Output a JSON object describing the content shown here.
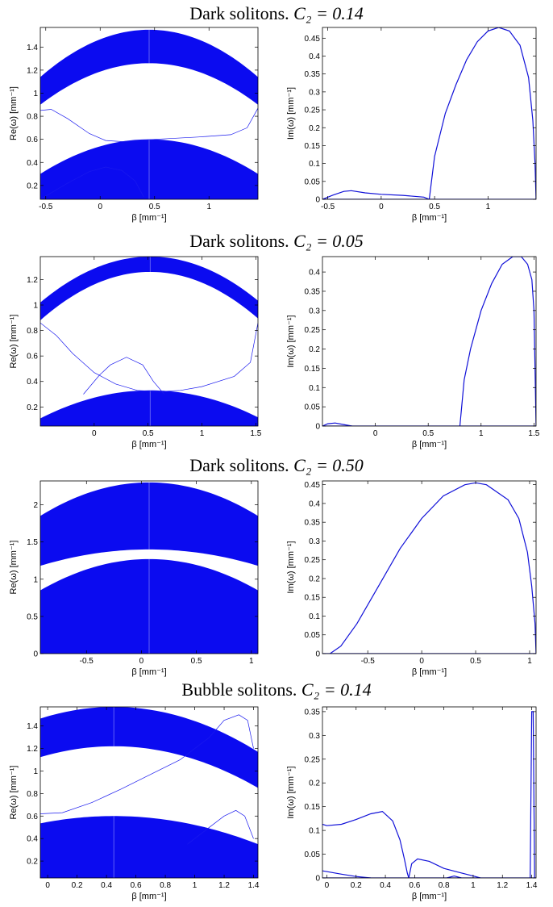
{
  "figure": {
    "rows": [
      {
        "title_prefix": "Dark solitons.",
        "param": "C₂ = 0.14"
      },
      {
        "title_prefix": "Dark solitons.",
        "param": "C₂ = 0.05"
      },
      {
        "title_prefix": "Dark solitons.",
        "param": "C₂ = 0.50"
      },
      {
        "title_prefix": "Bubble solitons.",
        "param": "C₂ = 0.14"
      }
    ]
  },
  "chart_data": [
    {
      "type": "line",
      "row": 0,
      "panel": "left",
      "xlabel": "β [mm⁻¹]",
      "ylabel": "Re(ω) [mm⁻¹]",
      "xlim": [
        -0.55,
        1.45
      ],
      "ylim": [
        0.08,
        1.57
      ],
      "xticks": [
        -0.5,
        0,
        0.5,
        1
      ],
      "yticks": [
        0.2,
        0.4,
        0.6,
        0.8,
        1,
        1.2,
        1.4
      ],
      "xtick_labels": [
        "-0.5",
        "0",
        "0.5",
        "1"
      ],
      "ytick_labels": [
        "0.2",
        "0.4",
        "0.6",
        "0.8",
        "1",
        "1.2",
        "1.4"
      ],
      "continuum_bands": [
        {
          "center": 0.45,
          "lower_peak": 1.26,
          "upper_peak": 1.55,
          "lower_edge": 0.9,
          "upper_edge": 1.14
        },
        {
          "center": 0.45,
          "lower_peak": 0.08,
          "upper_peak": 0.6,
          "lower_edge": 0.08,
          "upper_edge": 0.3
        }
      ],
      "series": [
        {
          "x": [
            -0.55,
            -0.45,
            -0.3,
            -0.1,
            0.05,
            0.2,
            0.5,
            0.9,
            1.2,
            1.35,
            1.45
          ],
          "y": [
            0.85,
            0.86,
            0.78,
            0.65,
            0.59,
            0.58,
            0.6,
            0.62,
            0.64,
            0.7,
            0.87
          ]
        },
        {
          "x": [
            -0.55,
            -0.3,
            -0.1,
            0.05,
            0.2,
            0.32,
            0.4
          ],
          "y": [
            0.08,
            0.22,
            0.32,
            0.36,
            0.33,
            0.24,
            0.1
          ]
        }
      ]
    },
    {
      "type": "line",
      "row": 0,
      "panel": "right",
      "xlabel": "β [mm⁻¹]",
      "ylabel": "Im(ω) [mm⁻¹]",
      "xlim": [
        -0.55,
        1.45
      ],
      "ylim": [
        0,
        0.48
      ],
      "xticks": [
        -0.5,
        0,
        0.5,
        1
      ],
      "yticks": [
        0,
        0.05,
        0.1,
        0.15,
        0.2,
        0.25,
        0.3,
        0.35,
        0.4,
        0.45
      ],
      "xtick_labels": [
        "-0.5",
        "0",
        "0.5",
        "1"
      ],
      "ytick_labels": [
        "0",
        "0.05",
        "0.1",
        "0.15",
        "0.2",
        "0.25",
        "0.3",
        "0.35",
        "0.4",
        "0.45"
      ],
      "series": [
        {
          "x": [
            -0.55,
            -0.45,
            -0.35,
            -0.28,
            -0.15,
            0.0,
            0.2,
            0.4,
            0.45
          ],
          "y": [
            0,
            0.012,
            0.022,
            0.024,
            0.018,
            0.014,
            0.011,
            0.006,
            0
          ]
        },
        {
          "x": [
            0.45,
            0.5,
            0.6,
            0.7,
            0.8,
            0.9,
            1.0,
            1.1,
            1.2,
            1.3,
            1.38,
            1.42,
            1.44,
            1.45
          ],
          "y": [
            0,
            0.12,
            0.24,
            0.32,
            0.39,
            0.44,
            0.47,
            0.48,
            0.47,
            0.43,
            0.34,
            0.22,
            0.1,
            0
          ]
        },
        {
          "x": [
            -0.55,
            1.45
          ],
          "y": [
            0,
            0
          ]
        }
      ]
    },
    {
      "type": "line",
      "row": 1,
      "panel": "left",
      "xlabel": "β [mm⁻¹]",
      "ylabel": "Re(ω) [mm⁻¹]",
      "xlim": [
        -0.5,
        1.52
      ],
      "ylim": [
        0.05,
        1.38
      ],
      "xticks": [
        0,
        0.5,
        1,
        1.5
      ],
      "yticks": [
        0.2,
        0.4,
        0.6,
        0.8,
        1,
        1.2
      ],
      "xtick_labels": [
        "0",
        "0.5",
        "1",
        "1.5"
      ],
      "ytick_labels": [
        "0.2",
        "0.4",
        "0.6",
        "0.8",
        "1",
        "1.2"
      ],
      "continuum_bands": [
        {
          "center": 0.52,
          "lower_peak": 1.26,
          "upper_peak": 1.38,
          "lower_edge": 0.88,
          "upper_edge": 1.02
        },
        {
          "center": 0.52,
          "lower_peak": 0.05,
          "upper_peak": 0.33,
          "lower_edge": 0.05,
          "upper_edge": 0.11
        }
      ],
      "series": [
        {
          "x": [
            -0.5,
            -0.35,
            -0.2,
            0.0,
            0.2,
            0.4,
            0.6,
            0.8,
            1.0,
            1.3,
            1.45,
            1.52
          ],
          "y": [
            0.86,
            0.76,
            0.62,
            0.47,
            0.38,
            0.33,
            0.32,
            0.33,
            0.36,
            0.44,
            0.55,
            0.86
          ]
        },
        {
          "x": [
            -0.1,
            0.05,
            0.15,
            0.3,
            0.45,
            0.55,
            0.65
          ],
          "y": [
            0.3,
            0.45,
            0.53,
            0.59,
            0.53,
            0.4,
            0.3
          ]
        }
      ]
    },
    {
      "type": "line",
      "row": 1,
      "panel": "right",
      "xlabel": "β [mm⁻¹]",
      "ylabel": "Im(ω) [mm⁻¹]",
      "xlim": [
        -0.5,
        1.52
      ],
      "ylim": [
        0,
        0.44
      ],
      "xticks": [
        0,
        0.5,
        1,
        1.5
      ],
      "yticks": [
        0,
        0.05,
        0.1,
        0.15,
        0.2,
        0.25,
        0.3,
        0.35,
        0.4
      ],
      "xtick_labels": [
        "0",
        "0.5",
        "1",
        "1.5"
      ],
      "ytick_labels": [
        "0",
        "0.05",
        "0.1",
        "0.15",
        "0.2",
        "0.25",
        "0.3",
        "0.35",
        "0.4"
      ],
      "series": [
        {
          "x": [
            -0.5,
            -0.45,
            -0.38,
            -0.3,
            -0.22
          ],
          "y": [
            0,
            0.006,
            0.008,
            0.004,
            0
          ]
        },
        {
          "x": [
            0.8,
            0.84,
            0.9,
            1.0,
            1.1,
            1.2,
            1.3,
            1.38,
            1.44,
            1.48,
            1.5,
            1.51,
            1.52
          ],
          "y": [
            0,
            0.12,
            0.2,
            0.3,
            0.37,
            0.42,
            0.44,
            0.44,
            0.42,
            0.38,
            0.3,
            0.15,
            0
          ]
        },
        {
          "x": [
            -0.5,
            1.52
          ],
          "y": [
            0,
            0
          ]
        }
      ]
    },
    {
      "type": "line",
      "row": 2,
      "panel": "left",
      "xlabel": "β [mm⁻¹]",
      "ylabel": "Re(ω) [mm⁻¹]",
      "xlim": [
        -0.92,
        1.06
      ],
      "ylim": [
        0,
        2.32
      ],
      "xticks": [
        -0.5,
        0,
        0.5,
        1
      ],
      "yticks": [
        0,
        0.5,
        1,
        1.5,
        2
      ],
      "xtick_labels": [
        "-0.5",
        "0",
        "0.5",
        "1"
      ],
      "ytick_labels": [
        "0",
        "0.5",
        "1",
        "1.5",
        "2"
      ],
      "continuum_bands": [
        {
          "center": 0.07,
          "lower_peak": 1.4,
          "upper_peak": 2.3,
          "lower_edge": 1.18,
          "upper_edge": 1.85
        },
        {
          "center": 0.07,
          "lower_peak": 0.0,
          "upper_peak": 1.27,
          "lower_edge": 0.0,
          "upper_edge": 0.85
        }
      ],
      "series": []
    },
    {
      "type": "line",
      "row": 2,
      "panel": "right",
      "xlabel": "β [mm⁻¹]",
      "ylabel": "Im(ω) [mm⁻¹]",
      "xlim": [
        -0.92,
        1.06
      ],
      "ylim": [
        0,
        0.46
      ],
      "xticks": [
        -0.5,
        0,
        0.5,
        1
      ],
      "yticks": [
        0,
        0.05,
        0.1,
        0.15,
        0.2,
        0.25,
        0.3,
        0.35,
        0.4,
        0.45
      ],
      "xtick_labels": [
        "-0.5",
        "0",
        "0.5",
        "1"
      ],
      "ytick_labels": [
        "0",
        "0.05",
        "0.1",
        "0.15",
        "0.2",
        "0.25",
        "0.3",
        "0.35",
        "0.4",
        "0.45"
      ],
      "series": [
        {
          "x": [
            -0.85,
            -0.75,
            -0.6,
            -0.4,
            -0.2,
            0.0,
            0.2,
            0.4,
            0.5,
            0.6,
            0.8,
            0.9,
            0.98,
            1.02,
            1.05,
            1.06
          ],
          "y": [
            0,
            0.02,
            0.08,
            0.18,
            0.28,
            0.36,
            0.42,
            0.45,
            0.455,
            0.45,
            0.41,
            0.36,
            0.27,
            0.18,
            0.08,
            0
          ]
        },
        {
          "x": [
            -0.92,
            1.06
          ],
          "y": [
            0,
            0
          ]
        }
      ]
    },
    {
      "type": "line",
      "row": 3,
      "panel": "left",
      "xlabel": "β [mm⁻¹]",
      "ylabel": "Re(ω) [mm⁻¹]",
      "xlim": [
        -0.05,
        1.43
      ],
      "ylim": [
        0.05,
        1.57
      ],
      "xticks": [
        0,
        0.2,
        0.4,
        0.6,
        0.8,
        1,
        1.2,
        1.4
      ],
      "yticks": [
        0.2,
        0.4,
        0.6,
        0.8,
        1,
        1.2,
        1.4
      ],
      "xtick_labels": [
        "0",
        "0.2",
        "0.4",
        "0.6",
        "0.8",
        "1",
        "1.2",
        "1.4"
      ],
      "ytick_labels": [
        "0.2",
        "0.4",
        "0.6",
        "0.8",
        "1",
        "1.2",
        "1.4"
      ],
      "continuum_bands": [
        {
          "center": 0.45,
          "lower_peak": 1.22,
          "upper_peak": 1.57,
          "lower_edge": 0.85,
          "upper_edge": 1.17
        },
        {
          "center": 0.45,
          "lower_peak": 0.05,
          "upper_peak": 0.6,
          "lower_edge": 0.05,
          "upper_edge": 0.35
        }
      ],
      "series": [
        {
          "x": [
            -0.05,
            0.1,
            0.3,
            0.5,
            0.7,
            0.9,
            1.1,
            1.2,
            1.3,
            1.36,
            1.4
          ],
          "y": [
            0.62,
            0.63,
            0.72,
            0.84,
            0.97,
            1.1,
            1.3,
            1.45,
            1.5,
            1.45,
            1.2
          ]
        },
        {
          "x": [
            0.95,
            1.1,
            1.2,
            1.28,
            1.34,
            1.4
          ],
          "y": [
            0.35,
            0.5,
            0.6,
            0.65,
            0.6,
            0.4
          ]
        }
      ]
    },
    {
      "type": "line",
      "row": 3,
      "panel": "right",
      "xlabel": "β [mm⁻¹]",
      "ylabel": "Im(ω) [mm⁻¹]",
      "xlim": [
        -0.03,
        1.43
      ],
      "ylim": [
        0,
        0.36
      ],
      "xticks": [
        0,
        0.2,
        0.4,
        0.6,
        0.8,
        1,
        1.2,
        1.4
      ],
      "yticks": [
        0,
        0.05,
        0.1,
        0.15,
        0.2,
        0.25,
        0.3,
        0.35
      ],
      "xtick_labels": [
        "0",
        "0.2",
        "0.4",
        "0.6",
        "0.8",
        "1",
        "1.2",
        "1.4"
      ],
      "ytick_labels": [
        "0",
        "0.05",
        "0.1",
        "0.15",
        "0.2",
        "0.25",
        "0.3",
        "0.35"
      ],
      "series": [
        {
          "x": [
            -0.03,
            0.0,
            0.1,
            0.2,
            0.3,
            0.38,
            0.45,
            0.5,
            0.53,
            0.55,
            0.56
          ],
          "y": [
            0.113,
            0.11,
            0.113,
            0.123,
            0.135,
            0.14,
            0.12,
            0.08,
            0.04,
            0.01,
            0
          ]
        },
        {
          "x": [
            0.56,
            0.58,
            0.62,
            0.7,
            0.8,
            0.9,
            1.0,
            1.05
          ],
          "y": [
            0,
            0.03,
            0.04,
            0.035,
            0.02,
            0.012,
            0.004,
            0
          ]
        },
        {
          "x": [
            -0.03,
            0.1,
            0.2,
            0.3
          ],
          "y": [
            0.015,
            0.008,
            0.003,
            0
          ]
        },
        {
          "x": [
            0.82,
            0.87,
            0.92
          ],
          "y": [
            0,
            0.004,
            0
          ]
        },
        {
          "x": [
            1.39,
            1.4,
            1.41,
            1.42
          ],
          "y": [
            0,
            0.35,
            0.35,
            0
          ]
        },
        {
          "x": [
            -0.03,
            1.43
          ],
          "y": [
            0,
            0
          ]
        }
      ]
    }
  ]
}
